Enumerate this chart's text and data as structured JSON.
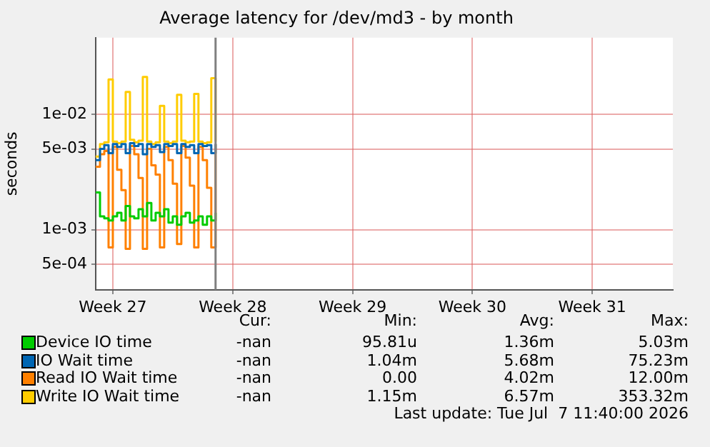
{
  "chart_data": {
    "type": "step",
    "title": "Average latency for /dev/md3 - by month",
    "ylabel": "seconds",
    "log": "y",
    "grid": true,
    "legend": "bottom",
    "marker": "none",
    "x": [
      "2026-06-28T00:00",
      "2026-06-28T06:00",
      "2026-06-28T12:00",
      "2026-06-28T18:00",
      "2026-06-29T00:00",
      "2026-06-29T06:00",
      "2026-06-29T12:00",
      "2026-06-29T18:00",
      "2026-06-30T00:00",
      "2026-06-30T06:00",
      "2026-06-30T12:00",
      "2026-06-30T18:00",
      "2026-07-01T00:00",
      "2026-07-01T06:00",
      "2026-07-01T12:00",
      "2026-07-01T18:00",
      "2026-07-02T00:00",
      "2026-07-02T06:00",
      "2026-07-02T12:00",
      "2026-07-02T18:00",
      "2026-07-03T00:00",
      "2026-07-03T06:00",
      "2026-07-03T12:00",
      "2026-07-03T18:00",
      "2026-07-04T00:00",
      "2026-07-04T06:00",
      "2026-07-04T12:00",
      "2026-07-04T18:00",
      "2026-07-05T00:00"
    ],
    "xlim": [
      "2026-06-28T00:00",
      "2026-07-31T17:00"
    ],
    "xticks": [
      {
        "value": "2026-06-29",
        "label": "Week 27"
      },
      {
        "value": "2026-07-06",
        "label": "Week 28"
      },
      {
        "value": "2026-07-13",
        "label": "Week 29"
      },
      {
        "value": "2026-07-20",
        "label": "Week 30"
      },
      {
        "value": "2026-07-27",
        "label": "Week 31"
      }
    ],
    "ylim": [
      0.0003,
      0.046
    ],
    "yticks": [
      {
        "value": 0.0005,
        "label": "5e-04"
      },
      {
        "value": 0.001,
        "label": "1e-03"
      },
      {
        "value": 0.005,
        "label": "5e-03"
      },
      {
        "value": 0.01,
        "label": "1e-02"
      }
    ],
    "ref_lines": [
      {
        "axis": "x",
        "value": "2026-07-05T00:00",
        "color": "#808080"
      }
    ],
    "series": [
      {
        "name": "Device IO time",
        "color": "#00cc00",
        "values": [
          0.0021,
          0.0013,
          0.00125,
          0.0012,
          0.0013,
          0.0014,
          0.0012,
          0.0016,
          0.0013,
          0.00125,
          0.0015,
          0.0013,
          0.0017,
          0.0012,
          0.0014,
          0.0013,
          0.0015,
          0.00115,
          0.0013,
          0.0011,
          0.0013,
          0.0014,
          0.00115,
          0.0012,
          0.0013,
          0.0011,
          0.0013,
          0.0012,
          0.0014
        ]
      },
      {
        "name": "IO Wait time",
        "color": "#0066b3",
        "values": [
          0.004,
          0.005,
          0.0054,
          0.0046,
          0.0055,
          0.0052,
          0.0055,
          0.0046,
          0.0056,
          0.0053,
          0.0055,
          0.0045,
          0.0055,
          0.0052,
          0.0054,
          0.0047,
          0.0055,
          0.0053,
          0.0055,
          0.0046,
          0.0055,
          0.0052,
          0.0054,
          0.0046,
          0.0055,
          0.0053,
          0.0054,
          0.0046,
          0.0055
        ]
      },
      {
        "name": "Read IO Wait time",
        "color": "#ff8000",
        "values": [
          0.0035,
          0.0045,
          0.0048,
          0.0007,
          0.0052,
          0.0033,
          0.0022,
          0.00068,
          0.0053,
          0.0045,
          0.0028,
          0.00068,
          0.005,
          0.0036,
          0.003,
          0.0007,
          0.0052,
          0.004,
          0.0025,
          0.00075,
          0.0053,
          0.0042,
          0.0024,
          0.0007,
          0.0052,
          0.004,
          0.0023,
          0.0007,
          0.0055
        ]
      },
      {
        "name": "Write IO Wait time",
        "color": "#ffcc00",
        "values": [
          0.0043,
          0.0055,
          0.0057,
          0.02,
          0.0058,
          0.0056,
          0.0058,
          0.0156,
          0.006,
          0.0057,
          0.0059,
          0.021,
          0.0058,
          0.0055,
          0.0057,
          0.0118,
          0.0058,
          0.0056,
          0.0058,
          0.0147,
          0.0059,
          0.0057,
          0.0058,
          0.015,
          0.0058,
          0.0056,
          0.0057,
          0.0205,
          0.0058
        ]
      }
    ],
    "annotations": [
      "Cur:",
      "Min:",
      "Avg:",
      "Max:",
      "-nan",
      "95.81u",
      "1.36m",
      "5.03m",
      "-nan",
      "1.04m",
      "5.68m",
      "75.23m",
      "-nan",
      "0.00",
      "4.02m",
      "12.00m",
      "-nan",
      "1.15m",
      "6.57m",
      "353.32m",
      "Last update: Tue Jul  7 11:40:00 2026"
    ]
  }
}
